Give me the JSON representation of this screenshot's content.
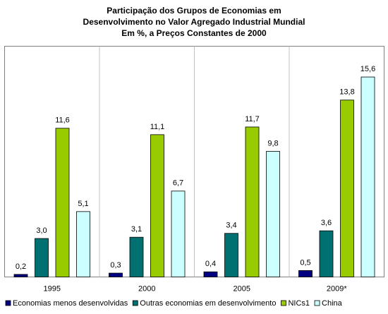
{
  "chart_data": {
    "type": "bar",
    "title": [
      "Participação dos Grupos de Economias em",
      "Desenvolvimento no Valor Agregado Industrial Mundial",
      "Em %, a Preços Constantes de 2000"
    ],
    "categories": [
      "1995",
      "2000",
      "2005",
      "2009*"
    ],
    "ylim": [
      0,
      18
    ],
    "series": [
      {
        "name": "Economias menos desenvolvidas",
        "color": "#000080",
        "values": [
          0.2,
          0.3,
          0.4,
          0.5
        ],
        "value_labels": [
          "0,2",
          "0,3",
          "0,4",
          "0,5"
        ]
      },
      {
        "name": "Outras economias em desenvolvimento",
        "color": "#007070",
        "values": [
          3.0,
          3.1,
          3.4,
          3.6
        ],
        "value_labels": [
          "3,0",
          "3,1",
          "3,4",
          "3,6"
        ]
      },
      {
        "name": "NICs1",
        "color": "#99cc00",
        "values": [
          11.6,
          11.1,
          11.7,
          13.8
        ],
        "value_labels": [
          "11,6",
          "11,1",
          "11,7",
          "13,8"
        ]
      },
      {
        "name": "China",
        "color": "#ccffff",
        "values": [
          5.1,
          6.7,
          9.8,
          15.6
        ],
        "value_labels": [
          "5,1",
          "6,7",
          "9,8",
          "15,6"
        ]
      }
    ],
    "legend": "bottom"
  }
}
